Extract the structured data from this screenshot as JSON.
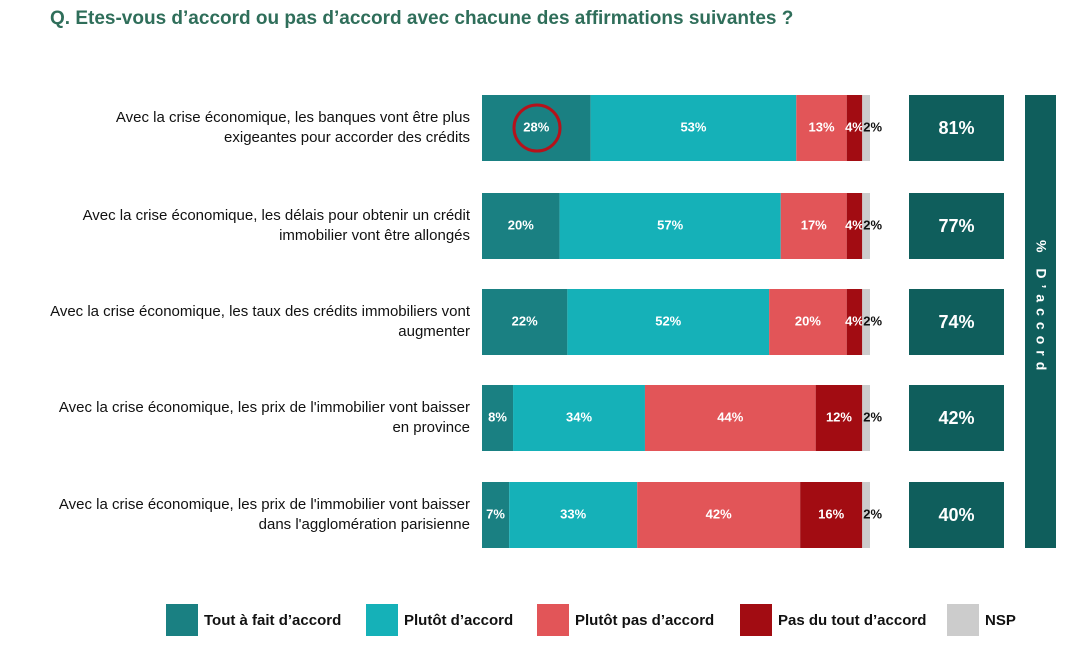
{
  "chart_data": {
    "type": "stacked-bar-horizontal",
    "title": "Q. Etes-vous d’accord ou pas d’accord avec chacune des affirmations suivantes ?",
    "categories": [
      "Avec la crise économique, les banques vont être plus\nexigeantes pour accorder des crédits",
      "Avec la crise économique, les délais pour obtenir un crédit\nimmobilier vont être allongés",
      "Avec la crise économique, les taux des crédits immobiliers vont\naugmenter",
      "Avec la crise économique, les prix de l'immobilier vont baisser\nen province",
      "Avec la crise économique, les prix de l'immobilier vont baisser\ndans l'agglomération parisienne"
    ],
    "xlim": [
      0,
      100
    ],
    "series": [
      {
        "name": "Tout à fait d’accord",
        "color": "#1a8082",
        "values": [
          28,
          20,
          22,
          8,
          7
        ],
        "value_labels": [
          "28%",
          "20%",
          "22%",
          "8%",
          "7%"
        ]
      },
      {
        "name": "Plutôt d’accord",
        "color": "#15b1b8",
        "values": [
          53,
          57,
          52,
          34,
          33
        ],
        "value_labels": [
          "53%",
          "57%",
          "52%",
          "34%",
          "33%"
        ]
      },
      {
        "name": "Plutôt pas d’accord",
        "color": "#e25558",
        "values": [
          13,
          17,
          20,
          44,
          42
        ],
        "value_labels": [
          "13%",
          "17%",
          "20%",
          "44%",
          "42%"
        ]
      },
      {
        "name": "Pas du tout d’accord",
        "color": "#a20c12",
        "values": [
          4,
          4,
          4,
          12,
          16
        ],
        "value_labels": [
          "4%",
          "4%",
          "4%",
          "12%",
          "16%"
        ]
      },
      {
        "name": "NSP",
        "color": "#cccccc",
        "values": [
          2,
          2,
          2,
          2,
          2
        ],
        "value_labels": [
          "2%",
          "2%",
          "2%",
          "2%",
          "2%"
        ]
      }
    ],
    "totals": {
      "name": "% D’accord",
      "color": "#0f5e5c",
      "values": [
        81,
        77,
        74,
        42,
        40
      ],
      "value_labels": [
        "81%",
        "77%",
        "74%",
        "42%",
        "40%"
      ]
    }
  }
}
